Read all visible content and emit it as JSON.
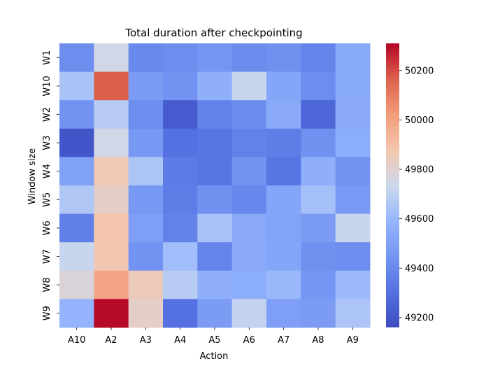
{
  "chart_data": {
    "type": "heatmap",
    "title": "Total duration after checkpointing",
    "xlabel": "Action",
    "ylabel": "Window size",
    "x_categories": [
      "A10",
      "A2",
      "A3",
      "A4",
      "A5",
      "A6",
      "A7",
      "A8",
      "A9"
    ],
    "y_categories": [
      "W1",
      "W10",
      "W2",
      "W3",
      "W4",
      "W5",
      "W6",
      "W7",
      "W8",
      "W9"
    ],
    "values": [
      [
        49420,
        49750,
        49400,
        49420,
        49450,
        49410,
        49430,
        49380,
        49530
      ],
      [
        49640,
        50170,
        49480,
        49440,
        49560,
        49720,
        49520,
        49420,
        49530
      ],
      [
        49440,
        49680,
        49420,
        49220,
        49370,
        49410,
        49540,
        49260,
        49540
      ],
      [
        49200,
        49750,
        49460,
        49300,
        49320,
        49370,
        49350,
        49430,
        49550
      ],
      [
        49500,
        49860,
        49650,
        49340,
        49320,
        49440,
        49320,
        49560,
        49440
      ],
      [
        49660,
        49820,
        49460,
        49350,
        49430,
        49390,
        49520,
        49630,
        49470
      ],
      [
        49360,
        49880,
        49490,
        49370,
        49640,
        49540,
        49510,
        49480,
        49720
      ],
      [
        49720,
        49870,
        49440,
        49620,
        49380,
        49540,
        49520,
        49430,
        49420
      ],
      [
        49780,
        49990,
        49850,
        49680,
        49560,
        49550,
        49600,
        49450,
        49610
      ],
      [
        49580,
        50300,
        49820,
        49300,
        49480,
        49710,
        49490,
        49480,
        49650
      ]
    ],
    "colorbar": {
      "vmin": 49160,
      "vmax": 50310,
      "ticks": [
        49200,
        49400,
        49600,
        49800,
        50000,
        50200
      ],
      "colormap": "coolwarm"
    }
  }
}
